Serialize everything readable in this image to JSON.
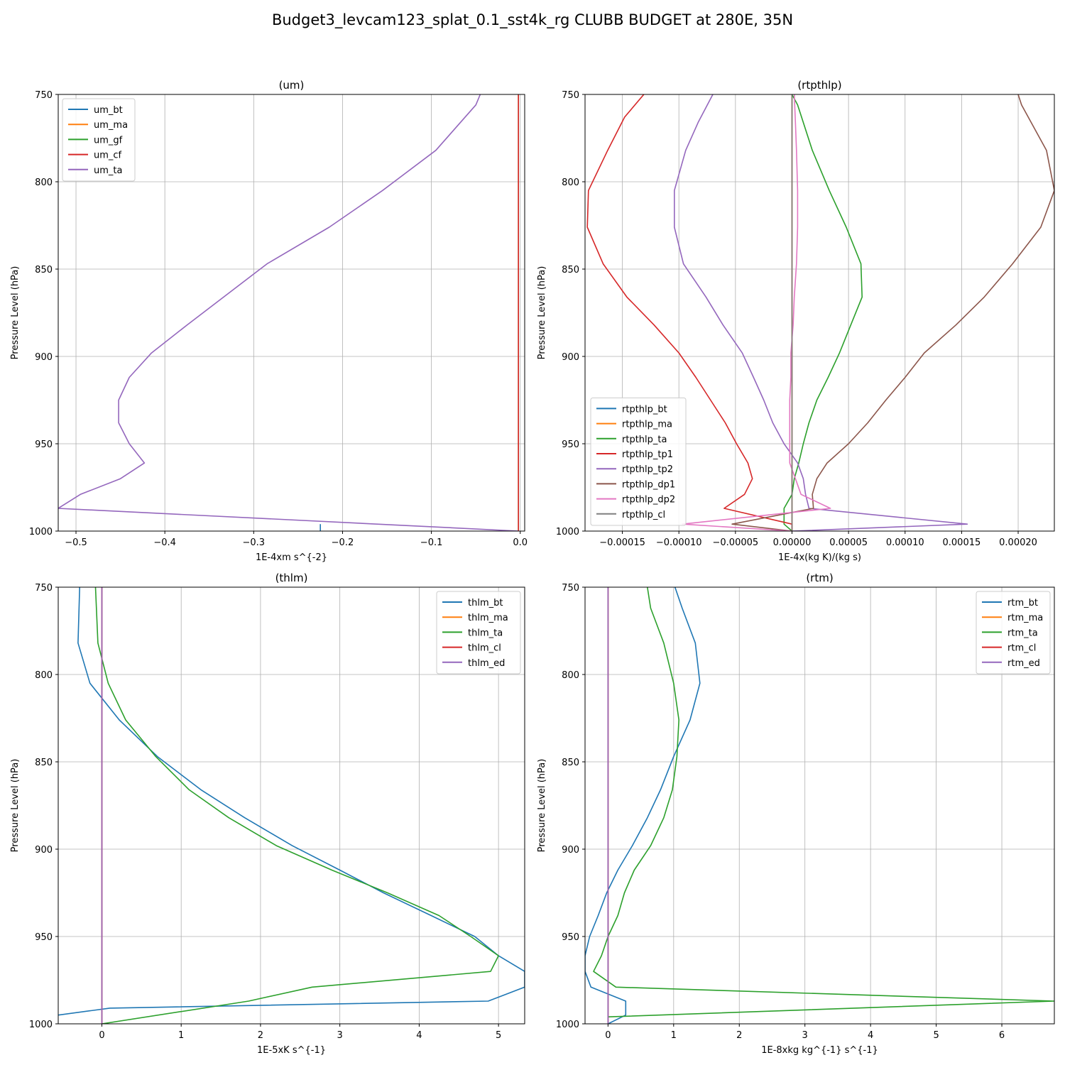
{
  "figure": {
    "suptitle": "Budget3_levcam123_splat_0.1_sst4k_rg CLUBB BUDGET at 280E, 35N"
  },
  "colors": {
    "C0": "#1f77b4",
    "C1": "#ff7f0e",
    "C2": "#2ca02c",
    "C3": "#d62728",
    "C4": "#9467bd",
    "C5": "#8c564b",
    "C6": "#e377c2",
    "C7": "#7f7f7f"
  },
  "chart_data": [
    {
      "type": "line",
      "title": "(um)",
      "xlabel": "1E-4xm s^{-2}",
      "ylabel": "Pressure Level (hPa)",
      "xlim": [
        -0.52,
        0.005
      ],
      "ylim": [
        1000,
        750
      ],
      "xticks": [
        -0.5,
        -0.4,
        -0.3,
        -0.2,
        -0.1,
        0.0
      ],
      "xtick_labels": [
        "−0.5",
        "−0.4",
        "−0.3",
        "−0.2",
        "−0.1",
        "0.0"
      ],
      "yticks": [
        750,
        800,
        850,
        900,
        950,
        1000
      ],
      "ytick_labels": [
        "750",
        "800",
        "850",
        "900",
        "950",
        "1000"
      ],
      "grid": true,
      "legend": "upper left",
      "series": [
        {
          "name": "um_bt",
          "color": "C0",
          "x": [
            -0.225,
            -0.225
          ],
          "y": [
            996,
            1000
          ]
        },
        {
          "name": "um_ma",
          "color": "C1",
          "x": [
            -0.002,
            -0.002
          ],
          "y": [
            750,
            1000
          ]
        },
        {
          "name": "um_gf",
          "color": "C2",
          "x": [
            -0.002,
            -0.002
          ],
          "y": [
            750,
            1000
          ]
        },
        {
          "name": "um_cf",
          "color": "C3",
          "x": [
            -0.002,
            -0.002
          ],
          "y": [
            750,
            1000
          ]
        },
        {
          "name": "um_ta",
          "color": "C4",
          "x": [
            -0.045,
            -0.05,
            -0.095,
            -0.155,
            -0.215,
            -0.285,
            -0.375,
            -0.415,
            -0.44,
            -0.452,
            -0.452,
            -0.44,
            -0.423,
            -0.45,
            -0.495,
            -0.52,
            -0.002
          ],
          "y": [
            750,
            756,
            782,
            805,
            826,
            847,
            882,
            898,
            912,
            925,
            938,
            950,
            961,
            970,
            979,
            987,
            1000
          ]
        }
      ]
    },
    {
      "type": "line",
      "title": "(rtpthlp)",
      "xlabel": "1E-4x(kg K)/(kg s)",
      "ylabel": "Pressure Level (hPa)",
      "xlim": [
        -0.000183,
        0.000232
      ],
      "ylim": [
        1000,
        750
      ],
      "xticks": [
        -0.00015,
        -0.0001,
        -5e-05,
        0.0,
        5e-05,
        0.0001,
        0.00015,
        0.0002
      ],
      "xtick_labels": [
        "−0.00015",
        "−0.00010",
        "−0.00005",
        "0.00000",
        "0.00005",
        "0.00010",
        "0.00015",
        "0.00020"
      ],
      "yticks": [
        750,
        800,
        850,
        900,
        950,
        1000
      ],
      "ytick_labels": [
        "750",
        "800",
        "850",
        "900",
        "950",
        "1000"
      ],
      "grid": true,
      "legend": "lower left",
      "series": [
        {
          "name": "rtpthlp_bt",
          "color": "C0",
          "x": [
            0.0,
            0.0
          ],
          "y": [
            750,
            1000
          ]
        },
        {
          "name": "rtpthlp_ma",
          "color": "C1",
          "x": [
            0.0,
            0.0
          ],
          "y": [
            750,
            1000
          ]
        },
        {
          "name": "rtpthlp_ta",
          "color": "C2",
          "x": [
            0.0,
            5e-06,
            1.8e-05,
            3.3e-05,
            4.8e-05,
            6.1e-05,
            6.2e-05,
            5.2e-05,
            4.2e-05,
            3.2e-05,
            2.2e-05,
            1.5e-05,
            1e-05,
            6e-06,
            2e-06,
            0.0,
            -7e-06,
            -7e-06,
            0.0
          ],
          "y": [
            750,
            756,
            782,
            805,
            826,
            847,
            866,
            882,
            898,
            912,
            925,
            938,
            950,
            961,
            970,
            979,
            987,
            996,
            1000
          ]
        },
        {
          "name": "rtpthlp_tp1",
          "color": "C3",
          "x": [
            -0.000131,
            -0.000148,
            -0.000163,
            -0.00018,
            -0.000181,
            -0.000167,
            -0.000146,
            -0.000122,
            -0.0001,
            -8.5e-05,
            -7.2e-05,
            -5.9e-05,
            -4.9e-05,
            -3.9e-05,
            -3.5e-05,
            -4.2e-05,
            -6e-05,
            0.0,
            0.0
          ],
          "y": [
            750,
            763,
            782,
            805,
            826,
            847,
            866,
            882,
            898,
            912,
            925,
            938,
            950,
            961,
            970,
            979,
            987,
            996,
            1000
          ]
        },
        {
          "name": "rtpthlp_tp2",
          "color": "C4",
          "x": [
            -7e-05,
            -8.3e-05,
            -9.4e-05,
            -0.000104,
            -0.000104,
            -9.6e-05,
            -7.6e-05,
            -6.1e-05,
            -4.4e-05,
            -3.4e-05,
            -2.5e-05,
            -1.7e-05,
            -7e-06,
            5e-06,
            1e-05,
            1.2e-05,
            1.5e-05,
            0.000155,
            0.0
          ],
          "y": [
            750,
            766,
            782,
            805,
            826,
            847,
            866,
            882,
            898,
            912,
            925,
            938,
            950,
            961,
            970,
            979,
            987,
            996,
            1000
          ]
        },
        {
          "name": "rtpthlp_dp1",
          "color": "C5",
          "x": [
            0.0002,
            0.000203,
            0.000225,
            0.000232,
            0.00022,
            0.000195,
            0.00017,
            0.000145,
            0.000117,
            0.0001,
            8.3e-05,
            6.7e-05,
            5e-05,
            3.1e-05,
            2.2e-05,
            1.8e-05,
            1.9e-05,
            -5.3e-05,
            0.0
          ],
          "y": [
            750,
            756,
            782,
            805,
            826,
            847,
            866,
            882,
            898,
            912,
            925,
            938,
            950,
            961,
            970,
            979,
            987,
            996,
            1000
          ]
        },
        {
          "name": "rtpthlp_dp2",
          "color": "C6",
          "x": [
            2e-06,
            3e-06,
            4e-06,
            5e-06,
            5e-06,
            4e-06,
            2e-06,
            1e-06,
            -1e-06,
            -1e-06,
            -2e-06,
            -2e-06,
            -2e-06,
            -2e-06,
            3e-06,
            8e-06,
            3.4e-05,
            -9.7e-05,
            0.0
          ],
          "y": [
            750,
            766,
            782,
            805,
            826,
            847,
            866,
            882,
            898,
            912,
            925,
            938,
            950,
            961,
            970,
            979,
            987,
            996,
            1000
          ]
        },
        {
          "name": "rtpthlp_cl",
          "color": "C7",
          "x": [
            0.0,
            0.0
          ],
          "y": [
            750,
            1000
          ]
        }
      ]
    },
    {
      "type": "line",
      "title": "(thlm)",
      "xlabel": "1E-5xK s^{-1}",
      "ylabel": "Pressure Level (hPa)",
      "xlim": [
        -0.55,
        5.33
      ],
      "ylim": [
        1000,
        750
      ],
      "xticks": [
        0,
        1,
        2,
        3,
        4,
        5
      ],
      "xtick_labels": [
        "0",
        "1",
        "2",
        "3",
        "4",
        "5"
      ],
      "yticks": [
        750,
        800,
        850,
        900,
        950,
        1000
      ],
      "ytick_labels": [
        "750",
        "800",
        "850",
        "900",
        "950",
        "1000"
      ],
      "grid": true,
      "legend": "upper right",
      "series": [
        {
          "name": "thlm_bt",
          "color": "C0",
          "x": [
            -0.28,
            -0.3,
            -0.15,
            0.22,
            0.7,
            1.25,
            1.8,
            2.4,
            3.0,
            3.55,
            4.15,
            4.7,
            5.0,
            5.33,
            5.33,
            4.87,
            0.1,
            -0.55
          ],
          "y": [
            750,
            782,
            805,
            826,
            847,
            866,
            882,
            898,
            912,
            925,
            938,
            950,
            961,
            970,
            979,
            987,
            991,
            995
          ]
        },
        {
          "name": "thlm_ma",
          "color": "C1",
          "x": [
            0.0,
            0.0
          ],
          "y": [
            750,
            1000
          ]
        },
        {
          "name": "thlm_ta",
          "color": "C2",
          "x": [
            -0.08,
            -0.05,
            0.08,
            0.3,
            0.68,
            1.1,
            1.6,
            2.2,
            2.9,
            3.6,
            4.25,
            4.65,
            5.0,
            4.9,
            2.65,
            1.85,
            0.0
          ],
          "y": [
            750,
            782,
            805,
            826,
            847,
            866,
            882,
            898,
            912,
            925,
            938,
            950,
            961,
            970,
            979,
            987,
            1000
          ]
        },
        {
          "name": "thlm_cl",
          "color": "C3",
          "x": [
            0.0,
            0.0
          ],
          "y": [
            750,
            1000
          ]
        },
        {
          "name": "thlm_ed",
          "color": "C4",
          "x": [
            0.0,
            0.0
          ],
          "y": [
            750,
            1000
          ]
        }
      ]
    },
    {
      "type": "line",
      "title": "(rtm)",
      "xlabel": "1E-8xkg kg^{-1} s^{-1}",
      "ylabel": "Pressure Level (hPa)",
      "xlim": [
        -0.35,
        6.8
      ],
      "ylim": [
        1000,
        750
      ],
      "xticks": [
        0,
        1,
        2,
        3,
        4,
        5,
        6
      ],
      "xtick_labels": [
        "0",
        "1",
        "2",
        "3",
        "4",
        "5",
        "6"
      ],
      "yticks": [
        750,
        800,
        850,
        900,
        950,
        1000
      ],
      "ytick_labels": [
        "750",
        "800",
        "850",
        "900",
        "950",
        "1000"
      ],
      "grid": true,
      "legend": "upper right",
      "series": [
        {
          "name": "rtm_bt",
          "color": "C0",
          "x": [
            1.02,
            1.13,
            1.33,
            1.4,
            1.25,
            1.0,
            0.8,
            0.6,
            0.37,
            0.15,
            -0.02,
            -0.15,
            -0.28,
            -0.35,
            -0.35,
            -0.26,
            0.27,
            0.27,
            0.0
          ],
          "y": [
            750,
            762,
            782,
            805,
            826,
            847,
            866,
            882,
            898,
            912,
            925,
            938,
            950,
            961,
            970,
            979,
            987,
            995,
            1000
          ]
        },
        {
          "name": "rtm_ma",
          "color": "C1",
          "x": [
            0.0,
            0.0
          ],
          "y": [
            750,
            1000
          ]
        },
        {
          "name": "rtm_ta",
          "color": "C2",
          "x": [
            0.6,
            0.65,
            0.85,
            1.0,
            1.08,
            1.05,
            0.98,
            0.85,
            0.65,
            0.4,
            0.25,
            0.15,
            0.0,
            -0.1,
            -0.22,
            0.12,
            6.8,
            0.0
          ],
          "y": [
            750,
            762,
            782,
            805,
            826,
            847,
            866,
            882,
            898,
            912,
            925,
            938,
            950,
            961,
            970,
            979,
            987,
            996
          ]
        },
        {
          "name": "rtm_cl",
          "color": "C3",
          "x": [
            0.0,
            0.0
          ],
          "y": [
            750,
            1000
          ]
        },
        {
          "name": "rtm_ed",
          "color": "C4",
          "x": [
            0.0,
            0.0
          ],
          "y": [
            750,
            1000
          ]
        }
      ]
    }
  ]
}
